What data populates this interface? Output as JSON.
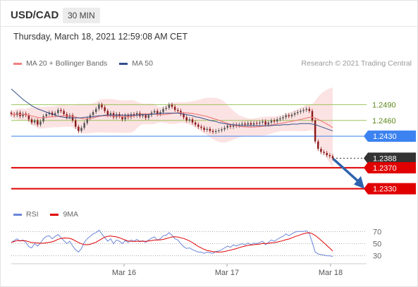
{
  "header": {
    "symbol": "USD/CAD",
    "timeframe": "30 MIN",
    "datetime": "Thursday, March 18, 2021 12:59:08 AM CET"
  },
  "legend": {
    "ma20": "MA 20 + Bollinger Bands",
    "ma50": "MA 50",
    "research": "Research © 2021 Trading Central"
  },
  "rsi_legend": {
    "rsi": "RSI",
    "ma9": "9MA"
  },
  "colors": {
    "ma20": "#f07f7f",
    "band": "#fbdada",
    "ma50": "#34508c",
    "resistance": "#9cc25c",
    "pivot": "#3c82f0",
    "support": "#e00000",
    "current": "#333333",
    "arrow": "#2e63ad",
    "rsi": "#6b86d8",
    "rsi_ma": "#e00000",
    "candle_up": "#555555",
    "candle_down": "#8b1a1a"
  },
  "chart_data": {
    "type": "candlestick",
    "x_tick_labels": [
      "Mar 16",
      "Mar 17",
      "Mar 18"
    ],
    "ylim": [
      1.23,
      1.2555
    ],
    "levels": [
      {
        "label": "1.2490",
        "value": 1.249,
        "kind": "resistance"
      },
      {
        "label": "1.2460",
        "value": 1.246,
        "kind": "resistance"
      },
      {
        "label": "1.2430",
        "value": 1.243,
        "kind": "pivot"
      },
      {
        "label": "1.2388",
        "value": 1.2388,
        "kind": "current"
      },
      {
        "label": "1.2370",
        "value": 1.237,
        "kind": "support"
      },
      {
        "label": "1.2330",
        "value": 1.233,
        "kind": "support"
      }
    ],
    "close": [
      1.2472,
      1.247,
      1.2475,
      1.2468,
      1.2473,
      1.247,
      1.2462,
      1.2456,
      1.246,
      1.2452,
      1.2458,
      1.2468,
      1.2472,
      1.2475,
      1.247,
      1.2474,
      1.248,
      1.2478,
      1.2472,
      1.2466,
      1.247,
      1.246,
      1.2448,
      1.244,
      1.2446,
      1.2455,
      1.2464,
      1.247,
      1.2476,
      1.2482,
      1.249,
      1.2485,
      1.2478,
      1.247,
      1.2474,
      1.2466,
      1.2472,
      1.2468,
      1.2462,
      1.247,
      1.2466,
      1.2472,
      1.2469,
      1.2474,
      1.2468,
      1.247,
      1.2465,
      1.247,
      1.2475,
      1.2478,
      1.2472,
      1.2476,
      1.2482,
      1.2484,
      1.249,
      1.2486,
      1.248,
      1.2478,
      1.2472,
      1.2466,
      1.246,
      1.2462,
      1.2456,
      1.2452,
      1.2448,
      1.2446,
      1.2442,
      1.2444,
      1.244,
      1.2438,
      1.244,
      1.2441,
      1.2443,
      1.2446,
      1.245,
      1.2448,
      1.2452,
      1.245,
      1.2452,
      1.2454,
      1.2452,
      1.2455,
      1.2452,
      1.2455,
      1.2454,
      1.2456,
      1.2458,
      1.2452,
      1.2456,
      1.246,
      1.2458,
      1.2462,
      1.2464,
      1.2466,
      1.247,
      1.2468,
      1.2471,
      1.2474,
      1.2476,
      1.2478,
      1.248,
      1.2482,
      1.2478,
      1.246,
      1.242,
      1.2406,
      1.24,
      1.2398,
      1.2394,
      1.2392,
      1.2388
    ],
    "ma50": [
      1.252,
      1.2515,
      1.251,
      1.2505,
      1.25,
      1.2496,
      1.2492,
      1.2488,
      1.2485,
      1.2482,
      1.248,
      1.2478,
      1.2476,
      1.2474,
      1.2472,
      1.247,
      1.2468,
      1.2467,
      1.2466,
      1.2465,
      1.2465,
      1.2465,
      1.2465,
      1.2465,
      1.2465,
      1.2466,
      1.2466,
      1.2467,
      1.2467,
      1.2468,
      1.2469,
      1.2469,
      1.247,
      1.247,
      1.247,
      1.247,
      1.247,
      1.247,
      1.247,
      1.247,
      1.247,
      1.247,
      1.247,
      1.247,
      1.2471,
      1.2471,
      1.2471,
      1.2471,
      1.2472,
      1.2472,
      1.2473,
      1.2473,
      1.2474,
      1.2474,
      1.2474,
      1.2474,
      1.2474,
      1.2474,
      1.2473,
      1.2472,
      1.2471,
      1.247,
      1.2469,
      1.2467,
      1.2466,
      1.2465,
      1.2463,
      1.2462,
      1.246,
      1.2459,
      1.2458,
      1.2456,
      1.2455,
      1.2454,
      1.2453,
      1.2452,
      1.2452,
      1.2451,
      1.2451,
      1.245,
      1.245,
      1.245,
      1.245,
      1.245,
      1.245,
      1.245,
      1.245,
      1.245,
      1.245,
      1.245,
      1.2451,
      1.2451,
      1.2451,
      1.2452,
      1.2452,
      1.2452,
      1.2453,
      1.2453,
      1.2453,
      1.2454,
      1.2454,
      1.2454,
      1.2454,
      1.2453,
      1.2452,
      1.245,
      1.2448,
      1.2446,
      1.2444,
      1.2442,
      1.244
    ],
    "rsi": [
      52,
      55,
      58,
      54,
      56,
      52,
      45,
      43,
      50,
      46,
      51,
      58,
      62,
      63,
      58,
      62,
      65,
      60,
      55,
      50,
      54,
      46,
      40,
      36,
      42,
      52,
      58,
      62,
      66,
      68,
      72,
      66,
      60,
      54,
      58,
      50,
      56,
      54,
      50,
      55,
      52,
      56,
      54,
      57,
      53,
      55,
      52,
      56,
      59,
      61,
      56,
      58,
      63,
      64,
      68,
      64,
      58,
      56,
      50,
      45,
      42,
      43,
      40,
      38,
      36,
      36,
      34,
      36,
      35,
      34,
      37,
      38,
      40,
      43,
      46,
      44,
      48,
      46,
      48,
      50,
      48,
      51,
      48,
      51,
      50,
      52,
      54,
      48,
      52,
      56,
      54,
      57,
      60,
      62,
      66,
      63,
      66,
      69,
      70,
      70,
      70,
      71,
      67,
      52,
      36,
      33,
      32,
      31,
      30,
      30,
      29
    ],
    "rsi_levels": [
      70,
      50,
      30
    ]
  }
}
